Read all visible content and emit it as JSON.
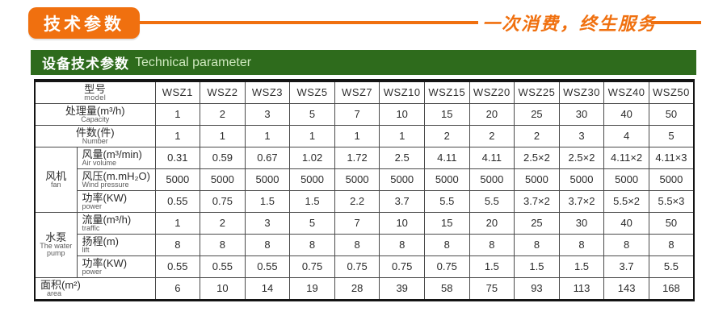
{
  "banner": {
    "badge": "技术参数",
    "slogan": "一次消费，终生服务"
  },
  "section": {
    "title_zh": "设备技术参数",
    "title_en": "Technical parameter"
  },
  "colors": {
    "accent_orange": "#f0700f",
    "header_green": "#2e6b1c",
    "table_border": "#141414"
  },
  "table": {
    "model": {
      "zh": "型号",
      "en": "model"
    },
    "columns": [
      "WSZ1",
      "WSZ2",
      "WSZ3",
      "WSZ5",
      "WSZ7",
      "WSZ10",
      "WSZ15",
      "WSZ20",
      "WSZ25",
      "WSZ30",
      "WSZ40",
      "WSZ50"
    ],
    "spec_rows": [
      {
        "zh": "处理量(m³/h)",
        "en": "Capacity",
        "full": true,
        "align": "center",
        "values": [
          "1",
          "2",
          "3",
          "5",
          "7",
          "10",
          "15",
          "20",
          "25",
          "30",
          "40",
          "50"
        ]
      },
      {
        "zh": "件数(件)",
        "en": "Number",
        "full": true,
        "align": "center",
        "values": [
          "1",
          "1",
          "1",
          "1",
          "1",
          "1",
          "2",
          "2",
          "2",
          "3",
          "4",
          "5"
        ]
      },
      {
        "group": {
          "zh": "风机",
          "en": "fan"
        },
        "zh": "风量(m³/min)",
        "en": "Air volume",
        "values": [
          "0.31",
          "0.59",
          "0.67",
          "1.02",
          "1.72",
          "2.5",
          "4.11",
          "4.11",
          "2.5×2",
          "2.5×2",
          "4.11×2",
          "4.11×3"
        ]
      },
      {
        "zh": "风压(m.mH₂O)",
        "en": "Wind pressure",
        "values": [
          "5000",
          "5000",
          "5000",
          "5000",
          "5000",
          "5000",
          "5000",
          "5000",
          "5000",
          "5000",
          "5000",
          "5000"
        ]
      },
      {
        "zh": "功率(KW)",
        "en": "power",
        "values": [
          "0.55",
          "0.75",
          "1.5",
          "1.5",
          "2.2",
          "3.7",
          "5.5",
          "5.5",
          "3.7×2",
          "3.7×2",
          "5.5×2",
          "5.5×3"
        ]
      },
      {
        "group": {
          "zh": "水泵",
          "en": "The water pump"
        },
        "zh": "流量(m³/h)",
        "en": "traffic",
        "values": [
          "1",
          "2",
          "3",
          "5",
          "7",
          "10",
          "15",
          "20",
          "25",
          "30",
          "40",
          "50"
        ]
      },
      {
        "zh": "扬程(m)",
        "en": "lift",
        "values": [
          "8",
          "8",
          "8",
          "8",
          "8",
          "8",
          "8",
          "8",
          "8",
          "8",
          "8",
          "8"
        ]
      },
      {
        "zh": "功率(KW)",
        "en": "power",
        "values": [
          "0.55",
          "0.55",
          "0.55",
          "0.75",
          "0.75",
          "0.75",
          "0.75",
          "1.5",
          "1.5",
          "1.5",
          "3.7",
          "5.5"
        ]
      },
      {
        "zh": "面积(m²)",
        "en": "area",
        "full": true,
        "align": "left",
        "values": [
          "6",
          "10",
          "14",
          "19",
          "28",
          "39",
          "58",
          "75",
          "93",
          "113",
          "143",
          "168"
        ]
      }
    ]
  }
}
